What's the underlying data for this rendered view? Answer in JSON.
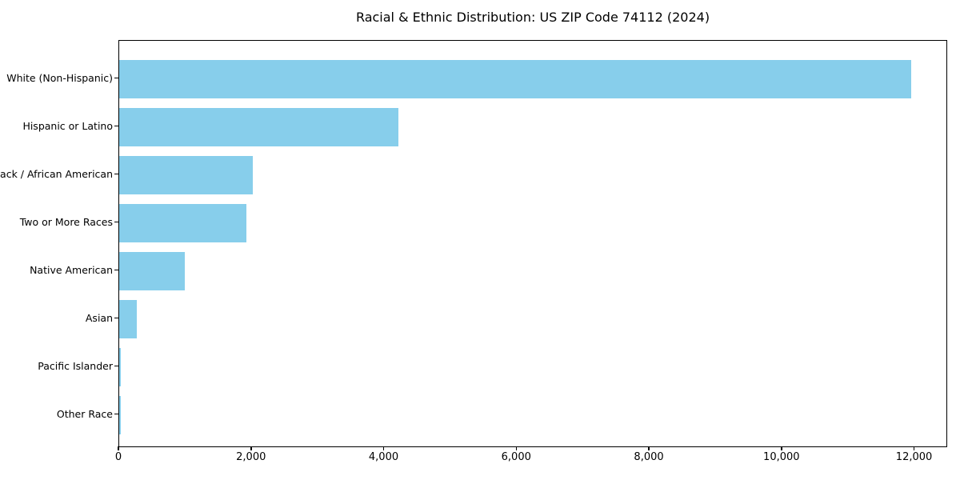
{
  "title": "Racial & Ethnic Distribution: US ZIP Code 74112 (2024)",
  "colors": {
    "bar": "#87CEEB",
    "axis": "#000000",
    "background": "#FFFFFF"
  },
  "chart_data": {
    "type": "bar",
    "orientation": "horizontal",
    "title": "Racial & Ethnic Distribution: US ZIP Code 74112 (2024)",
    "categories": [
      "White (Non-Hispanic)",
      "Hispanic or Latino",
      "Black / African American",
      "Two or More Races",
      "Native American",
      "Asian",
      "Pacific Islander",
      "Other Race"
    ],
    "values": [
      11940,
      4210,
      2010,
      1920,
      990,
      270,
      30,
      30
    ],
    "xlabel": "",
    "ylabel": "",
    "xlim": [
      0,
      12500
    ],
    "x_ticks": [
      0,
      2000,
      4000,
      6000,
      8000,
      10000,
      12000
    ],
    "x_tick_labels": [
      "0",
      "2,000",
      "4,000",
      "6,000",
      "8,000",
      "10,000",
      "12,000"
    ],
    "bar_color": "#87CEEB",
    "grid": false,
    "legend": "none"
  }
}
